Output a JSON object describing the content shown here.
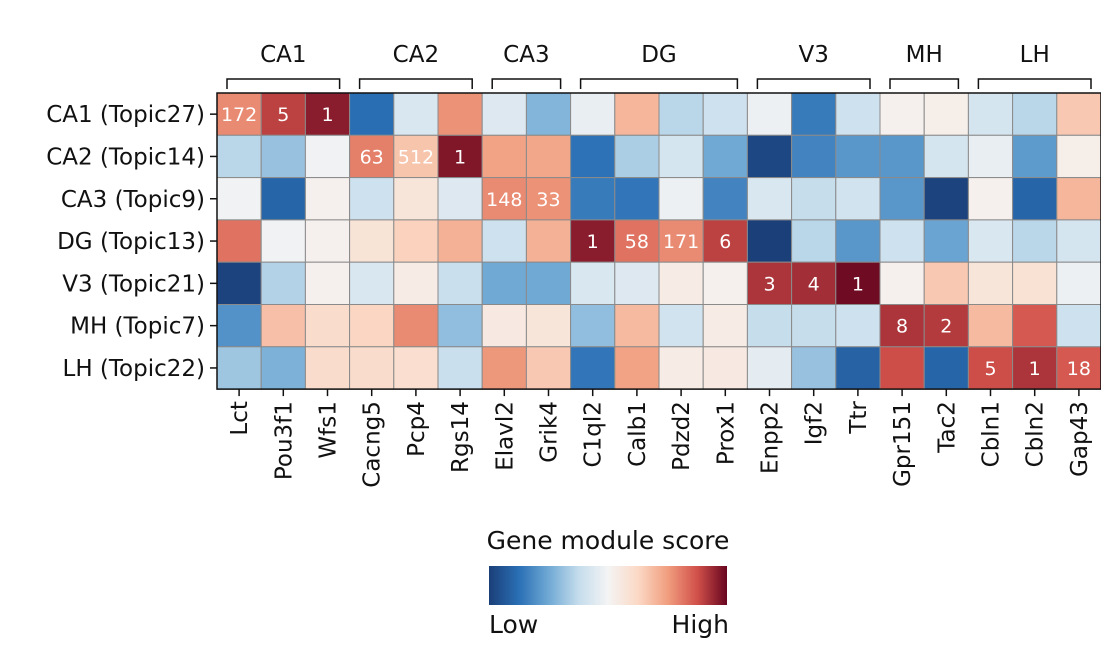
{
  "chart_data": {
    "type": "heatmap",
    "title": "",
    "colorbar": {
      "title": "Gene module score",
      "low_label": "Low",
      "high_label": "High",
      "colormap": [
        "#1b3f78",
        "#2a6fb5",
        "#6fa9d4",
        "#c4dcec",
        "#f4f4f4",
        "#fbd9c6",
        "#f19e7f",
        "#d1504a",
        "#67051f"
      ]
    },
    "groups": [
      {
        "name": "CA1",
        "start": 0,
        "end": 2
      },
      {
        "name": "CA2",
        "start": 3,
        "end": 5
      },
      {
        "name": "CA3",
        "start": 6,
        "end": 7
      },
      {
        "name": "DG",
        "start": 8,
        "end": 11
      },
      {
        "name": "V3",
        "start": 12,
        "end": 14
      },
      {
        "name": "MH",
        "start": 15,
        "end": 16
      },
      {
        "name": "LH",
        "start": 17,
        "end": 19
      }
    ],
    "columns": [
      "Lct",
      "Pou3f1",
      "Wfs1",
      "Cacng5",
      "Pcp4",
      "Rgs14",
      "Elavl2",
      "Grik4",
      "C1ql2",
      "Calb1",
      "Pdzd2",
      "Prox1",
      "Enpp2",
      "Igf2",
      "Ttr",
      "Gpr151",
      "Tac2",
      "Cbln1",
      "Cbln2",
      "Gap43"
    ],
    "rows": [
      "CA1 (Topic27)",
      "CA2 (Topic14)",
      "CA3 (Topic9)",
      "DG (Topic13)",
      "V3 (Topic21)",
      "MH (Topic7)",
      "LH (Topic22)"
    ],
    "values_scale": "0 = low, 1 = high",
    "values": [
      [
        0.78,
        0.9,
        0.96,
        0.12,
        0.43,
        0.77,
        0.44,
        0.28,
        0.47,
        0.7,
        0.36,
        0.4,
        0.48,
        0.15,
        0.4,
        0.52,
        0.53,
        0.42,
        0.36,
        0.66
      ],
      [
        0.36,
        0.31,
        0.49,
        0.8,
        0.67,
        0.97,
        0.74,
        0.73,
        0.13,
        0.34,
        0.42,
        0.25,
        0.02,
        0.17,
        0.21,
        0.21,
        0.42,
        0.47,
        0.22,
        0.53
      ],
      [
        0.49,
        0.1,
        0.52,
        0.4,
        0.57,
        0.44,
        0.78,
        0.77,
        0.15,
        0.14,
        0.48,
        0.17,
        0.43,
        0.38,
        0.41,
        0.21,
        0.01,
        0.52,
        0.1,
        0.7
      ],
      [
        0.82,
        0.49,
        0.52,
        0.58,
        0.64,
        0.71,
        0.4,
        0.71,
        0.96,
        0.82,
        0.78,
        0.9,
        0.0,
        0.36,
        0.21,
        0.4,
        0.24,
        0.43,
        0.36,
        0.42
      ],
      [
        0.01,
        0.35,
        0.52,
        0.43,
        0.54,
        0.39,
        0.25,
        0.25,
        0.43,
        0.44,
        0.54,
        0.52,
        0.92,
        0.93,
        0.99,
        0.52,
        0.66,
        0.57,
        0.59,
        0.48
      ],
      [
        0.2,
        0.68,
        0.61,
        0.63,
        0.78,
        0.3,
        0.55,
        0.57,
        0.3,
        0.69,
        0.41,
        0.54,
        0.38,
        0.38,
        0.4,
        0.92,
        0.91,
        0.69,
        0.86,
        0.4
      ],
      [
        0.32,
        0.27,
        0.61,
        0.61,
        0.6,
        0.39,
        0.76,
        0.66,
        0.14,
        0.74,
        0.54,
        0.55,
        0.46,
        0.31,
        0.09,
        0.88,
        0.1,
        0.88,
        0.92,
        0.86
      ]
    ],
    "annotations": [
      {
        "row": 0,
        "col": 0,
        "text": "172"
      },
      {
        "row": 0,
        "col": 1,
        "text": "5"
      },
      {
        "row": 0,
        "col": 2,
        "text": "1"
      },
      {
        "row": 1,
        "col": 3,
        "text": "63"
      },
      {
        "row": 1,
        "col": 4,
        "text": "512"
      },
      {
        "row": 1,
        "col": 5,
        "text": "1"
      },
      {
        "row": 2,
        "col": 6,
        "text": "148"
      },
      {
        "row": 2,
        "col": 7,
        "text": "33"
      },
      {
        "row": 3,
        "col": 8,
        "text": "1"
      },
      {
        "row": 3,
        "col": 9,
        "text": "58"
      },
      {
        "row": 3,
        "col": 10,
        "text": "171"
      },
      {
        "row": 3,
        "col": 11,
        "text": "6"
      },
      {
        "row": 4,
        "col": 12,
        "text": "3"
      },
      {
        "row": 4,
        "col": 13,
        "text": "4"
      },
      {
        "row": 4,
        "col": 14,
        "text": "1"
      },
      {
        "row": 5,
        "col": 15,
        "text": "8"
      },
      {
        "row": 5,
        "col": 16,
        "text": "2"
      },
      {
        "row": 6,
        "col": 17,
        "text": "5"
      },
      {
        "row": 6,
        "col": 18,
        "text": "1"
      },
      {
        "row": 6,
        "col": 19,
        "text": "18"
      }
    ]
  }
}
